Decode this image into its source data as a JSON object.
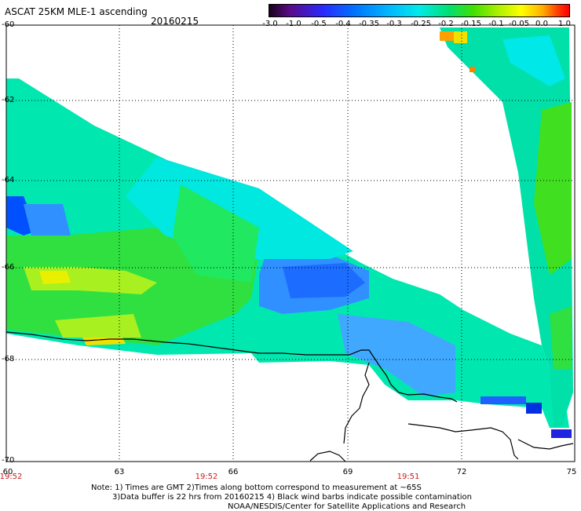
{
  "header": {
    "title": "ASCAT 25KM MLE-1 ascending",
    "date": "20160215"
  },
  "colorbar": {
    "labels": [
      "-3.0",
      "-1.0",
      "-0.5",
      "-0.4",
      "-0.35",
      "-0.3",
      "-0.25",
      "-0.2",
      "-0.15",
      "-0.1",
      "-0.05",
      "0.0",
      "1.0"
    ]
  },
  "axes": {
    "y_labels": [
      "-60",
      "-62",
      "-64",
      "-66",
      "-68",
      "-70"
    ],
    "x_labels": [
      "60",
      "63",
      "66",
      "69",
      "72",
      "75"
    ]
  },
  "pass_times": [
    "19:52",
    "19:52",
    "19:51"
  ],
  "notes": [
    "Note: 1) Times are GMT 2)Times along bottom correspond to measurement at ~65S",
    "3)Data buffer is 22 hrs from 20160215 4) Black wind barbs indicate possible contamination",
    "NOAA/NESDIS/Center for Satellite Applications and Research"
  ],
  "colors": {
    "land_coast": "#000000",
    "time_label": "#c81e1e"
  }
}
